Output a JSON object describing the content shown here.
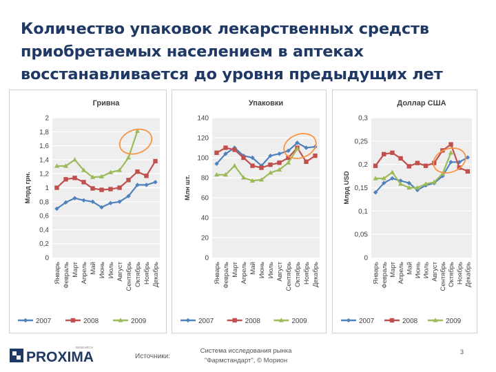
{
  "title": "Количество упаковок лекарственных средств приобретаемых населением в аптеках восстанавливается до уровня предыдущих лет",
  "logo": {
    "text": "PROXIMA",
    "tagline": "RESEARCH"
  },
  "footer": {
    "sources_label": "Источники:",
    "sources_text": "Система исследования рынка \"Фармстандарт\", © Морион",
    "slide_number": "3"
  },
  "colors": {
    "2007": "#4f81bd",
    "2008": "#c0504d",
    "2009": "#9bbb59",
    "highlight": "#f79646",
    "title": "#1f3864"
  },
  "chart_data": [
    {
      "type": "line",
      "title": "Гривна",
      "ylabel": "Млрд грн.",
      "ylim": [
        0,
        2
      ],
      "yticks": [
        "0",
        "0,2",
        "0,4",
        "0,6",
        "0,8",
        "1",
        "1,2",
        "1,4",
        "1,6",
        "1,8",
        "2"
      ],
      "grid": true,
      "legend": "bottom",
      "categories": [
        "Январь",
        "Февраль",
        "Март",
        "Апрель",
        "Май",
        "Июнь",
        "Июль",
        "Август",
        "Сентябрь",
        "Октябрь",
        "Ноябрь",
        "Декабрь"
      ],
      "series": [
        {
          "name": "2007",
          "values": [
            0.7,
            0.79,
            0.85,
            0.82,
            0.8,
            0.72,
            0.78,
            0.8,
            0.88,
            1.04,
            1.04,
            1.08
          ]
        },
        {
          "name": "2008",
          "values": [
            1.0,
            1.12,
            1.14,
            1.08,
            0.99,
            0.97,
            0.98,
            1.0,
            1.11,
            1.23,
            1.17,
            1.38
          ]
        },
        {
          "name": "2009",
          "values": [
            1.31,
            1.31,
            1.4,
            1.25,
            1.15,
            1.16,
            1.22,
            1.25,
            1.43,
            1.81,
            null,
            null
          ]
        }
      ],
      "highlight": {
        "series": "2009",
        "from": 8,
        "to": 9
      }
    },
    {
      "type": "line",
      "title": "Упаковки",
      "ylabel": "Млн шт.",
      "ylim": [
        0,
        140
      ],
      "yticks": [
        "0",
        "20",
        "40",
        "60",
        "80",
        "100",
        "120",
        "140"
      ],
      "grid": true,
      "legend": "bottom",
      "categories": [
        "Январь",
        "Февраль",
        "Март",
        "Апрель",
        "Май",
        "Июнь",
        "Июль",
        "Август",
        "Сентябрь",
        "Октябрь",
        "Ноябрь",
        "Декабрь"
      ],
      "series": [
        {
          "name": "2007",
          "values": [
            94,
            104,
            110,
            102,
            100,
            92,
            102,
            104,
            107,
            115,
            110,
            111
          ]
        },
        {
          "name": "2008",
          "values": [
            105,
            110,
            108,
            100,
            92,
            90,
            93,
            95,
            100,
            110,
            96,
            102
          ]
        },
        {
          "name": "2009",
          "values": [
            83,
            83,
            92,
            80,
            77,
            78,
            85,
            88,
            95,
            109,
            null,
            null
          ]
        }
      ],
      "highlight": {
        "series": "2009",
        "from": 9,
        "to": 9
      }
    },
    {
      "type": "line",
      "title": "Доллар США",
      "ylabel": "Млрд USD",
      "ylim": [
        0,
        0.3
      ],
      "yticks": [
        "0",
        "0,05",
        "0,1",
        "0,15",
        "0,2",
        "0,25",
        "0,3"
      ],
      "grid": true,
      "legend": "bottom",
      "categories": [
        "Январь",
        "Февраль",
        "Март",
        "Апрель",
        "Май",
        "Июнь",
        "Июль",
        "Август",
        "Сентябрь",
        "Октябрь",
        "Ноябрь",
        "Декабрь"
      ],
      "series": [
        {
          "name": "2007",
          "values": [
            0.14,
            0.16,
            0.17,
            0.165,
            0.16,
            0.145,
            0.155,
            0.16,
            0.175,
            0.205,
            0.205,
            0.215
          ]
        },
        {
          "name": "2008",
          "values": [
            0.197,
            0.222,
            0.225,
            0.213,
            0.196,
            0.203,
            0.197,
            0.203,
            0.23,
            0.243,
            0.193,
            0.185
          ]
        },
        {
          "name": "2009",
          "values": [
            0.17,
            0.17,
            0.183,
            0.158,
            0.15,
            0.15,
            0.158,
            0.162,
            0.18,
            0.225,
            null,
            null
          ]
        }
      ],
      "highlight": {
        "series": "2009",
        "from": 8,
        "to": 9
      }
    }
  ]
}
